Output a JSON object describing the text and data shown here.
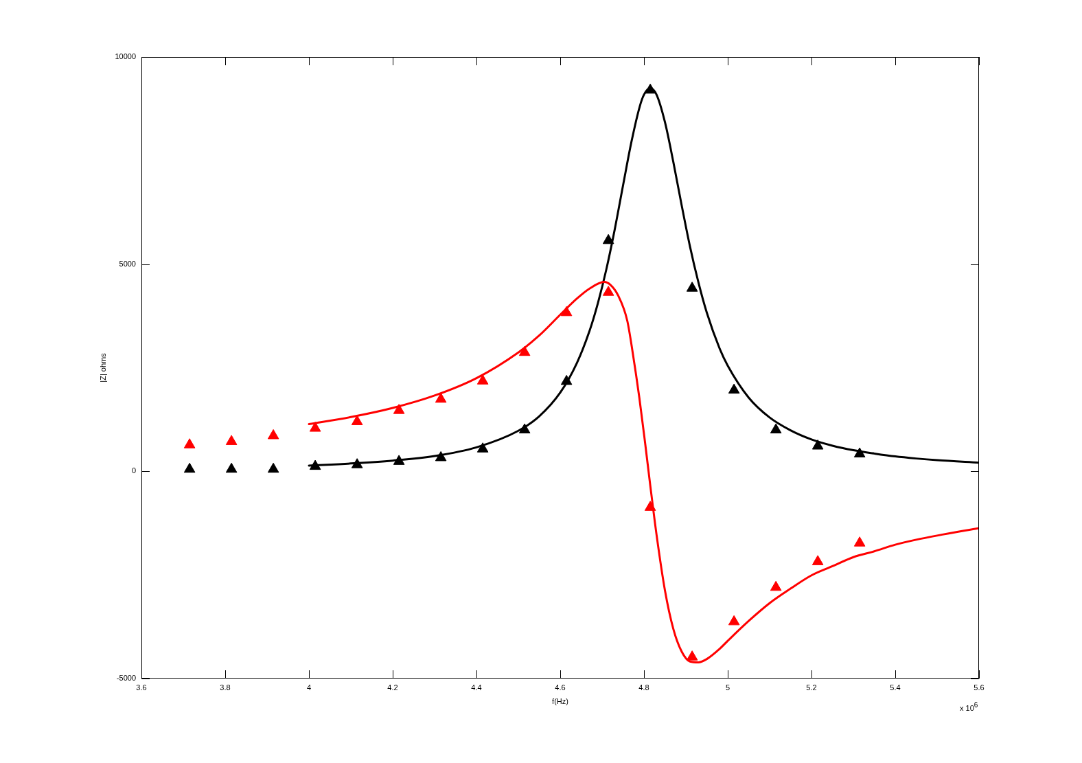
{
  "chart_data": {
    "type": "line",
    "xlabel": "f(Hz)",
    "ylabel": "|Z| ohms",
    "annotations": [
      "x 10$^{6}$"
    ],
    "xlim": [
      3.6,
      5.6
    ],
    "xticks": [
      3.6,
      3.8,
      4,
      4.2,
      4.4,
      4.6,
      4.8,
      5,
      5.2,
      5.4,
      5.6
    ],
    "ylim": [
      -5000,
      10000
    ],
    "yticks": [
      -5000,
      0,
      5000,
      10000
    ],
    "grid": false,
    "legend": false,
    "series": [
      {
        "type": "line",
        "color": "#000000",
        "marker": "none",
        "line_style": "solid",
        "x": [
          4.0,
          4.1,
          4.2,
          4.3,
          4.4,
          4.5,
          4.55,
          4.6,
          4.64,
          4.67,
          4.69,
          4.71,
          4.73,
          4.75,
          4.77,
          4.79,
          4.8,
          4.815,
          4.83,
          4.85,
          4.87,
          4.89,
          4.91,
          4.93,
          4.95,
          4.98,
          5.0,
          5.05,
          5.1,
          5.15,
          5.2,
          5.25,
          5.3,
          5.35,
          5.4,
          5.45,
          5.5,
          5.6
        ],
        "values": [
          140,
          190,
          260,
          370,
          580,
          980,
          1330,
          1900,
          2620,
          3390,
          4060,
          4870,
          5830,
          6900,
          7950,
          8810,
          9090,
          9250,
          9090,
          8430,
          7470,
          6420,
          5420,
          4560,
          3830,
          2980,
          2550,
          1780,
          1300,
          990,
          770,
          620,
          510,
          430,
          360,
          310,
          270,
          210
        ]
      },
      {
        "type": "line",
        "color": "#ff0000",
        "marker": "none",
        "line_style": "solid",
        "x": [
          4.0,
          4.1,
          4.2,
          4.3,
          4.4,
          4.5,
          4.55,
          4.6,
          4.64,
          4.67,
          4.705,
          4.72,
          4.738,
          4.76,
          4.773,
          4.789,
          4.803,
          4.815,
          4.83,
          4.85,
          4.87,
          4.89,
          4.91,
          4.93,
          4.95,
          4.98,
          5.0,
          5.05,
          5.1,
          5.15,
          5.2,
          5.25,
          5.3,
          5.35,
          5.4,
          5.45,
          5.5,
          5.6
        ],
        "values": [
          1140,
          1310,
          1530,
          1830,
          2250,
          2870,
          3280,
          3780,
          4170,
          4410,
          4570,
          4500,
          4250,
          3640,
          2870,
          1770,
          660,
          -340,
          -1530,
          -2870,
          -3800,
          -4350,
          -4590,
          -4610,
          -4530,
          -4290,
          -4090,
          -3610,
          -3180,
          -2830,
          -2510,
          -2290,
          -2070,
          -1930,
          -1770,
          -1650,
          -1550,
          -1370
        ]
      },
      {
        "type": "scatter",
        "color": "#000000",
        "marker": "triangle",
        "x": [
          3.715,
          3.815,
          3.915,
          4.015,
          4.115,
          4.215,
          4.315,
          4.415,
          4.515,
          4.615,
          4.715,
          4.815,
          4.915,
          5.015,
          5.115,
          5.215,
          5.315
        ],
        "values": [
          50,
          50,
          50,
          120,
          160,
          240,
          330,
          540,
          1000,
          2170,
          5570,
          9200,
          4420,
          1960,
          1000,
          610,
          420
        ]
      },
      {
        "type": "scatter",
        "color": "#ff0000",
        "marker": "triangle",
        "x": [
          3.715,
          3.815,
          3.915,
          4.015,
          4.115,
          4.215,
          4.315,
          4.415,
          4.515,
          4.615,
          4.715,
          4.815,
          4.915,
          5.015,
          5.115,
          5.215,
          5.315
        ],
        "values": [
          640,
          720,
          860,
          1040,
          1200,
          1470,
          1740,
          2180,
          2870,
          3830,
          4320,
          -870,
          -4480,
          -3630,
          -2800,
          -2180,
          -1730
        ]
      }
    ]
  }
}
